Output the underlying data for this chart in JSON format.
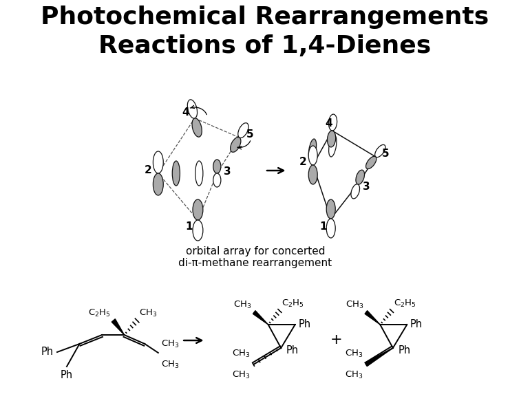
{
  "title_line1": "Photochemical Rearrangements",
  "title_line2": "Reactions of 1,4-Dienes",
  "title_fontsize": 26,
  "background_color": "#ffffff",
  "text_color": "#000000",
  "orbital_caption": "orbital array for concerted\ndi-π-methane rearrangement",
  "orbital_caption_fontsize": 11,
  "fig_width": 7.7,
  "fig_height": 6.02,
  "dpi": 100,
  "gray_fill": "#aaaaaa",
  "dark_gray": "#666666",
  "edge_col": "#111111"
}
